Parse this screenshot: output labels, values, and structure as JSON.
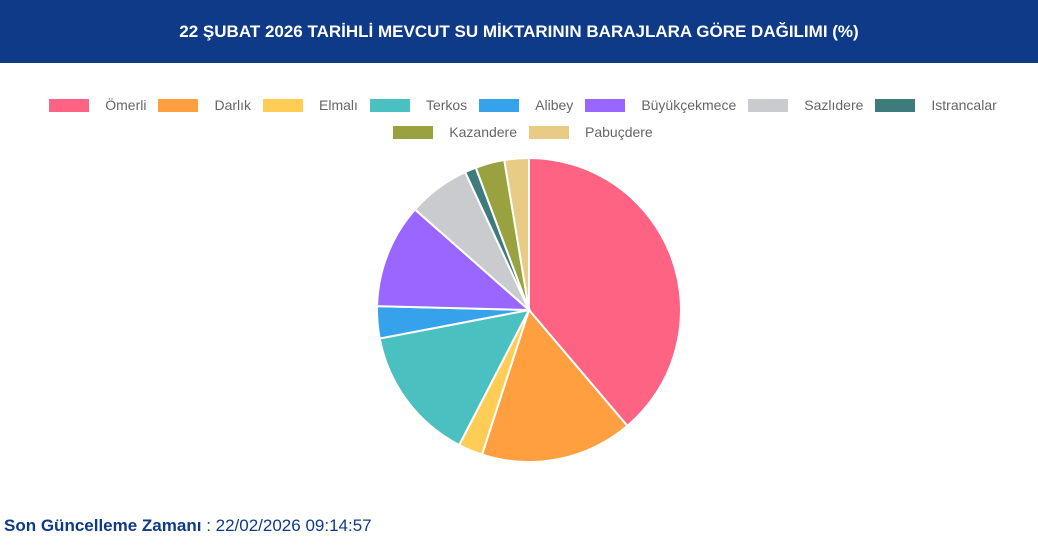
{
  "chart_data": {
    "type": "pie",
    "title": "22 ŞUBAT 2026 TARİHLİ MEVCUT SU MİKTARININ BARAJLARA GÖRE DAĞILIMI (%)",
    "categories": [
      "Ömerli",
      "Darlık",
      "Elmalı",
      "Terkos",
      "Alibey",
      "Büyükçekmece",
      "Sazlıdere",
      "Istrancalar",
      "Kazandere",
      "Pabuçdere"
    ],
    "values": [
      38.8,
      16.2,
      2.6,
      14.4,
      3.4,
      11.1,
      6.6,
      1.2,
      3.1,
      2.6
    ],
    "colors": [
      "#ff6384",
      "#ff9f40",
      "#ffcd56",
      "#4bc0c0",
      "#36a2eb",
      "#9966ff",
      "#c9cbcf",
      "#3e7b7d",
      "#9aa23f",
      "#e8cc86"
    ]
  },
  "footer": {
    "label": "Son Güncelleme Zamanı",
    "value": ": 22/02/2026 09:14:57"
  }
}
